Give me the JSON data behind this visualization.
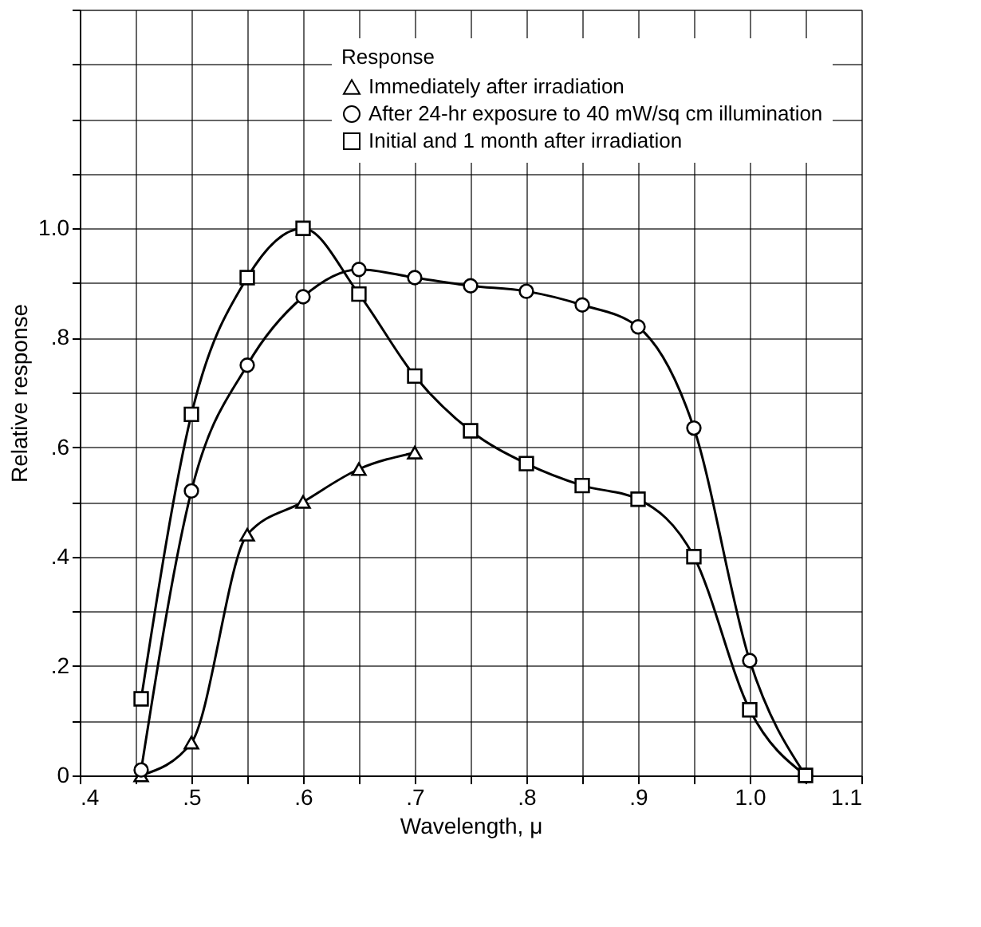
{
  "chart_data": {
    "type": "line",
    "xlabel": "Wavelength, μ",
    "ylabel": "Relative response",
    "legend_title": "Response",
    "xlim": [
      0.4,
      1.1
    ],
    "ylim": [
      0,
      1.4
    ],
    "xticks": [
      {
        "value": 0.4,
        "label": ".4"
      },
      {
        "value": 0.45,
        "label": null
      },
      {
        "value": 0.5,
        "label": ".5"
      },
      {
        "value": 0.55,
        "label": null
      },
      {
        "value": 0.6,
        "label": ".6"
      },
      {
        "value": 0.65,
        "label": null
      },
      {
        "value": 0.7,
        "label": ".7"
      },
      {
        "value": 0.75,
        "label": null
      },
      {
        "value": 0.8,
        "label": ".8"
      },
      {
        "value": 0.85,
        "label": null
      },
      {
        "value": 0.9,
        "label": ".9"
      },
      {
        "value": 0.95,
        "label": null
      },
      {
        "value": 1.0,
        "label": "1.0"
      },
      {
        "value": 1.05,
        "label": null
      },
      {
        "value": 1.1,
        "label": "1.1"
      }
    ],
    "yticks": [
      0,
      {
        "value": 0.1,
        "label": null
      },
      {
        "value": 0.2,
        "label": ".2"
      },
      {
        "value": 0.3,
        "label": null
      },
      {
        "value": 0.4,
        "label": ".4"
      },
      {
        "value": 0.5,
        "label": null
      },
      {
        "value": 0.6,
        "label": ".6"
      },
      {
        "value": 0.7,
        "label": null
      },
      {
        "value": 0.8,
        "label": ".8"
      },
      {
        "value": 0.9,
        "label": null
      },
      {
        "value": 1.0,
        "label": "1.0"
      },
      {
        "value": 1.1,
        "label": null
      },
      {
        "value": 1.2,
        "label": null
      },
      {
        "value": 1.3,
        "label": null
      },
      {
        "value": 1.4,
        "label": null
      }
    ],
    "grid": true,
    "legend": "top right",
    "line_style": "solid",
    "series": [
      {
        "name": "Immediately after irradiation",
        "color": "#000000",
        "marker": "triangle",
        "x": [
          0.455,
          0.5,
          0.55,
          0.6,
          0.65,
          0.7
        ],
        "values": [
          0.0,
          0.06,
          0.44,
          0.5,
          0.56,
          0.59
        ]
      },
      {
        "name": "After 24-hr exposure to 40 mW/sq cm illumination",
        "color": "#000000",
        "marker": "circle",
        "x": [
          0.455,
          0.5,
          0.55,
          0.6,
          0.65,
          0.7,
          0.75,
          0.8,
          0.85,
          0.9,
          0.95,
          1.0,
          1.05
        ],
        "values": [
          0.01,
          0.52,
          0.75,
          0.875,
          0.925,
          0.91,
          0.895,
          0.885,
          0.86,
          0.82,
          0.635,
          0.21,
          0.0
        ]
      },
      {
        "name": "Initial and 1 month after irradiation",
        "color": "#000000",
        "marker": "square",
        "x": [
          0.455,
          0.5,
          0.55,
          0.6,
          0.65,
          0.7,
          0.75,
          0.8,
          0.85,
          0.9,
          0.95,
          1.0,
          1.05
        ],
        "values": [
          0.14,
          0.66,
          0.91,
          1.0,
          0.88,
          0.73,
          0.63,
          0.57,
          0.53,
          0.505,
          0.4,
          0.12,
          0.0
        ]
      }
    ]
  }
}
